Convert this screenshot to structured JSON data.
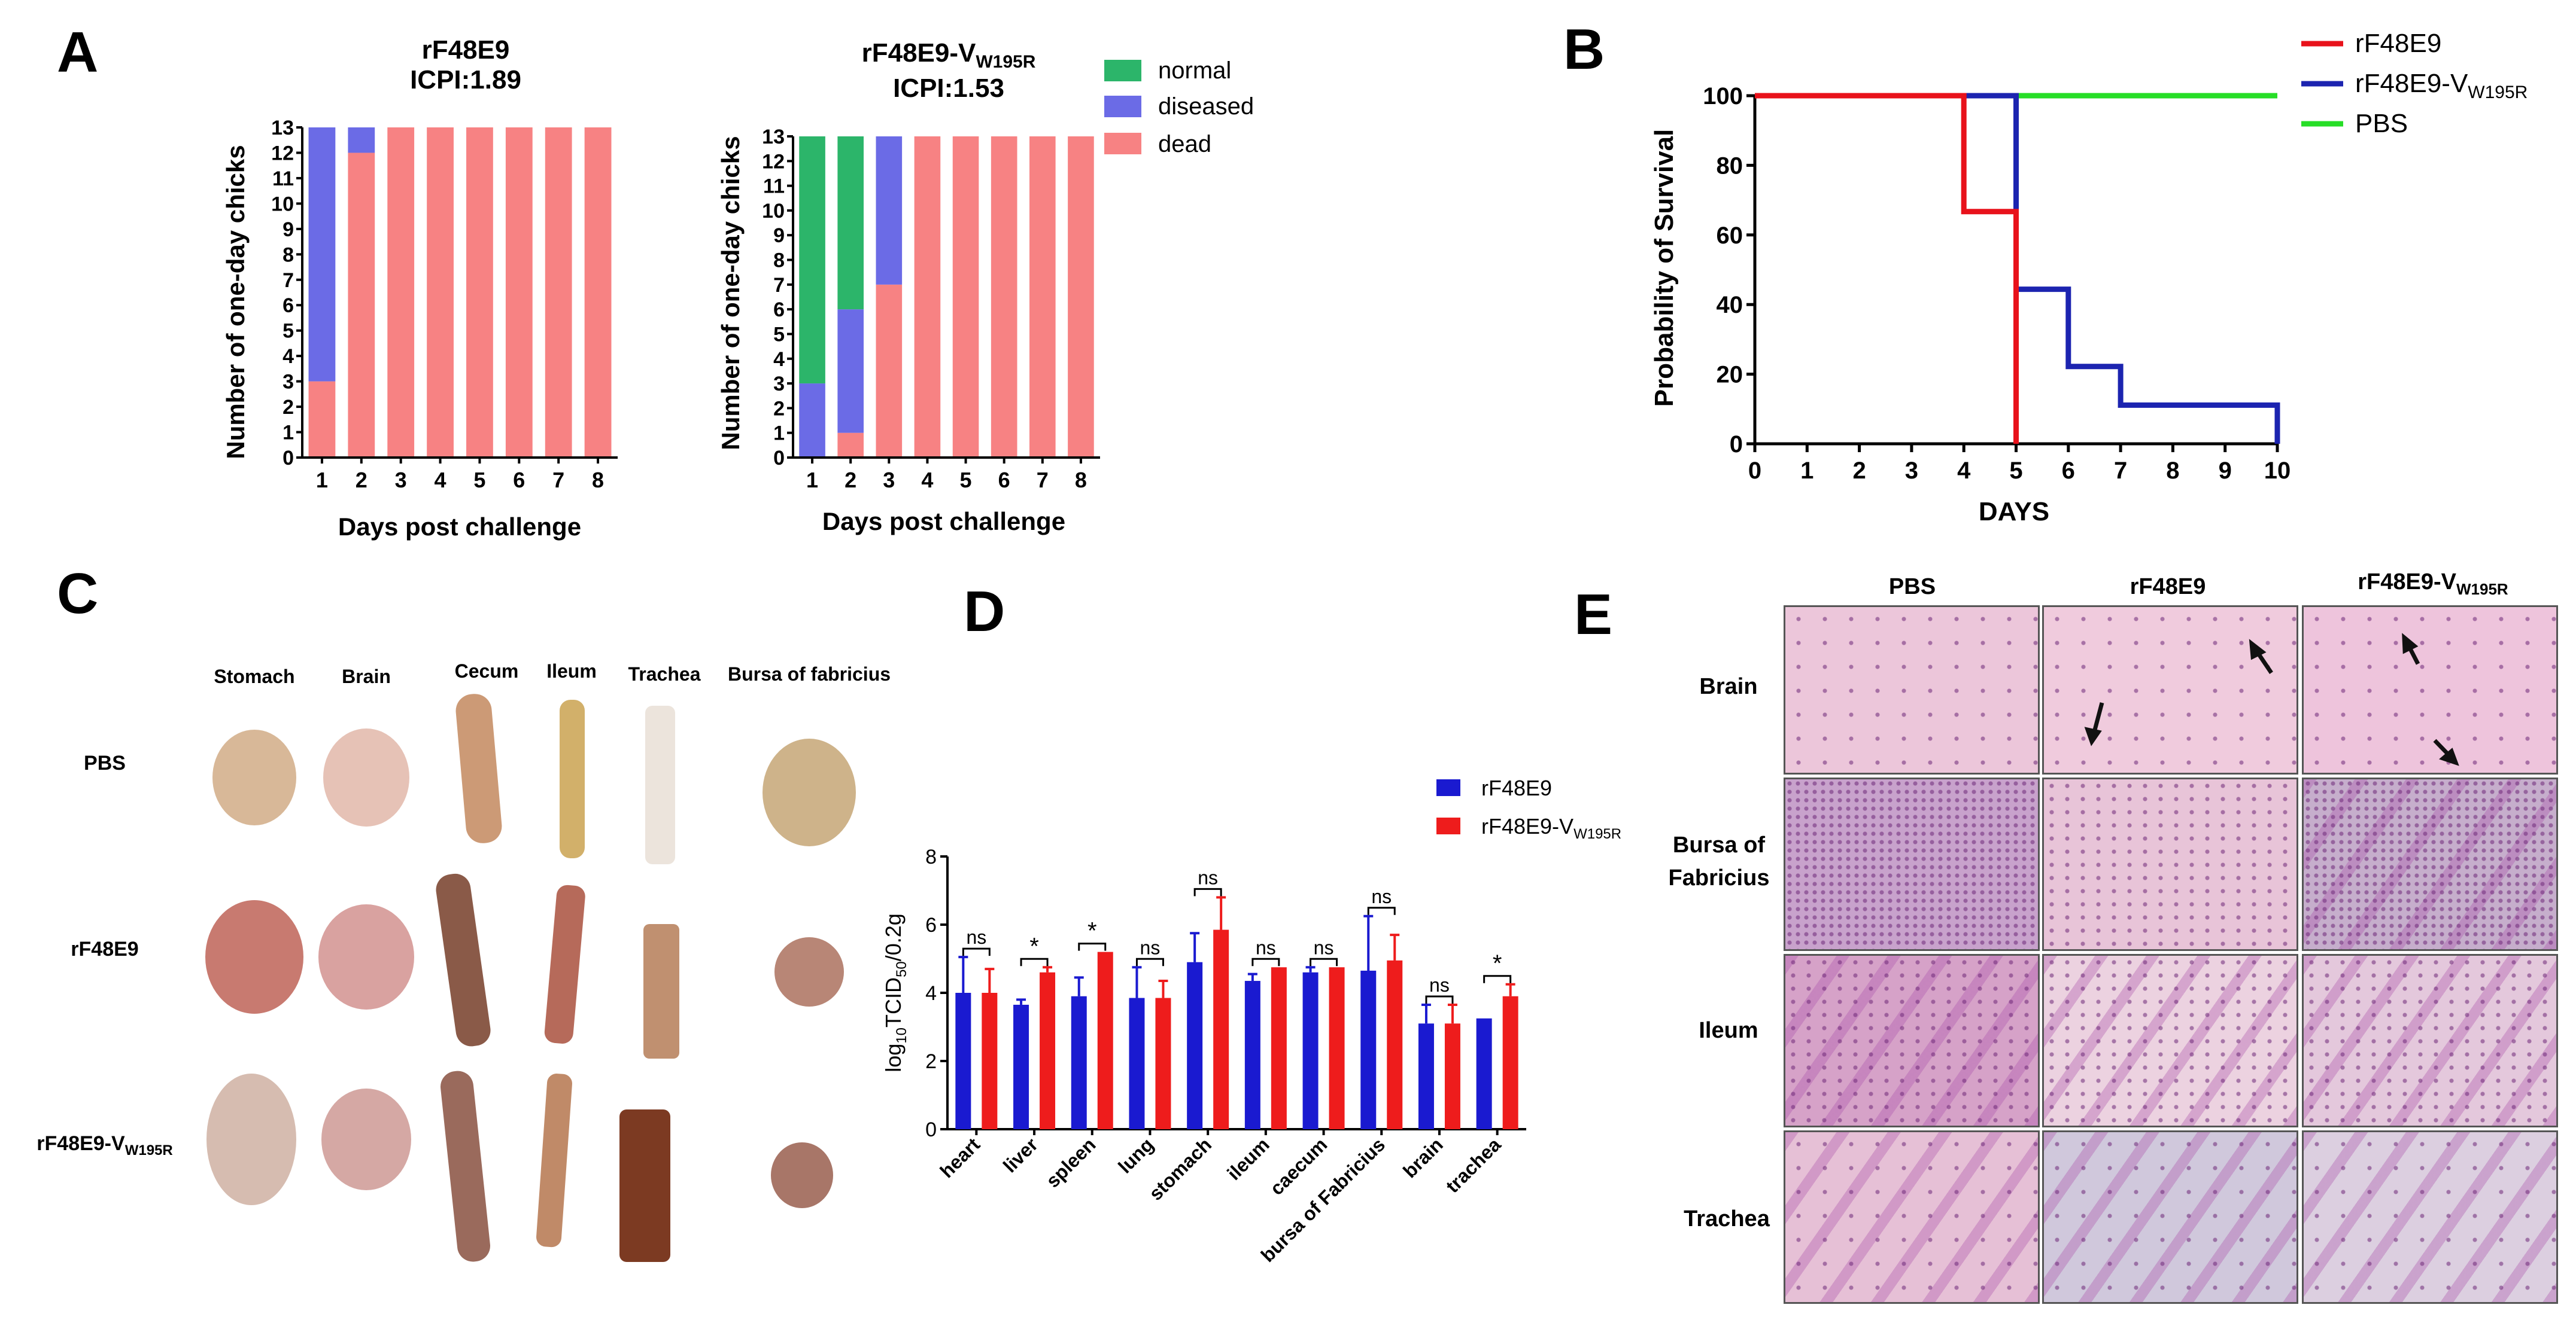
{
  "panels": {
    "A": "A",
    "B": "B",
    "C": "C",
    "D": "D",
    "E": "E"
  },
  "colors": {
    "normal": "#2cb56a",
    "diseased": "#6b6be6",
    "dead": "#f78283",
    "rF48E9": "#e8121b",
    "mutant": "#1c24b0",
    "PBS": "#27de27",
    "barBlue": "#1a1ad0",
    "barRed": "#ee1c1c"
  },
  "chart_data": [
    {
      "id": "A1",
      "type": "bar",
      "title": "rF48E9",
      "subtitle": "ICPI:1.89",
      "xlabel": "Days post challenge",
      "ylabel": "Number of one-day chicks",
      "categories": [
        "1",
        "2",
        "3",
        "4",
        "5",
        "6",
        "7",
        "8"
      ],
      "ylim": [
        0,
        13
      ],
      "yticks": [
        "0",
        "1",
        "2",
        "3",
        "4",
        "5",
        "6",
        "7",
        "8",
        "9",
        "10",
        "11",
        "12",
        "13"
      ],
      "series": [
        {
          "name": "dead",
          "values": [
            3,
            12,
            13,
            13,
            13,
            13,
            13,
            13
          ]
        },
        {
          "name": "diseased",
          "values": [
            10,
            1,
            0,
            0,
            0,
            0,
            0,
            0
          ]
        },
        {
          "name": "normal",
          "values": [
            0,
            0,
            0,
            0,
            0,
            0,
            0,
            0
          ]
        }
      ]
    },
    {
      "id": "A2",
      "type": "bar",
      "title_base": "rF48E9-V",
      "title_sub": "W195R",
      "subtitle": "ICPI:1.53",
      "xlabel": "Days post challenge",
      "ylabel": "Number of one-day chicks",
      "categories": [
        "1",
        "2",
        "3",
        "4",
        "5",
        "6",
        "7",
        "8"
      ],
      "ylim": [
        0,
        13
      ],
      "yticks": [
        "0",
        "1",
        "2",
        "3",
        "4",
        "5",
        "6",
        "7",
        "8",
        "9",
        "10",
        "11",
        "12",
        "13"
      ],
      "legend": [
        "normal",
        "diseased",
        "dead"
      ],
      "series": [
        {
          "name": "dead",
          "values": [
            0,
            1,
            7,
            13,
            13,
            13,
            13,
            13
          ]
        },
        {
          "name": "diseased",
          "values": [
            3,
            5,
            6,
            0,
            0,
            0,
            0,
            0
          ]
        },
        {
          "name": "normal",
          "values": [
            10,
            7,
            0,
            0,
            0,
            0,
            0,
            0
          ]
        }
      ]
    },
    {
      "id": "B",
      "type": "line",
      "xlabel": "DAYS",
      "ylabel": "Probability of Survival",
      "xlim": [
        0,
        10
      ],
      "ylim": [
        0,
        100
      ],
      "xticks": [
        "0",
        "1",
        "2",
        "3",
        "4",
        "5",
        "6",
        "7",
        "8",
        "9",
        "10"
      ],
      "yticks": [
        "0",
        "20",
        "40",
        "60",
        "80",
        "100"
      ],
      "series": [
        {
          "name": "rF48E9",
          "x": [
            0,
            4,
            4,
            5,
            5
          ],
          "y": [
            100,
            100,
            66.7,
            66.7,
            0
          ]
        },
        {
          "name": "rF48E9-VW195R",
          "label_base": "rF48E9-V",
          "label_sub": "W195R",
          "x": [
            0,
            5,
            5,
            6,
            6,
            7,
            7,
            10,
            10
          ],
          "y": [
            100,
            100,
            44.4,
            44.4,
            22.2,
            22.2,
            11.1,
            11.1,
            0
          ]
        },
        {
          "name": "PBS",
          "x": [
            0,
            10
          ],
          "y": [
            100,
            100
          ]
        }
      ]
    },
    {
      "id": "D",
      "type": "bar",
      "ylabel_base": "log",
      "ylabel_sub1": "10",
      "ylabel_mid": "TCID",
      "ylabel_sub2": "50",
      "ylabel_end": "/0.2g",
      "ylim": [
        0,
        8
      ],
      "yticks": [
        "0",
        "2",
        "4",
        "6",
        "8"
      ],
      "categories": [
        "heart",
        "liver",
        "spleen",
        "lung",
        "stomach",
        "ileum",
        "caecum",
        "bursa of Fabricius",
        "brain",
        "trachea"
      ],
      "series": [
        {
          "name": "rF48E9",
          "values": [
            4.0,
            3.65,
            3.9,
            3.85,
            4.9,
            4.35,
            4.6,
            4.65,
            3.1,
            3.25
          ],
          "errors": [
            1.05,
            0.15,
            0.55,
            0.9,
            0.85,
            0.2,
            0.15,
            1.6,
            0.55,
            0.0
          ]
        },
        {
          "name": "rF48E9-VW195R",
          "label_base": "rF48E9-V",
          "label_sub": "W195R",
          "values": [
            4.0,
            4.6,
            5.2,
            3.85,
            5.85,
            4.75,
            4.75,
            4.95,
            3.1,
            3.9
          ],
          "errors": [
            0.7,
            0.15,
            0.0,
            0.5,
            0.95,
            0.0,
            0.0,
            0.75,
            0.55,
            0.35
          ]
        }
      ],
      "significance": [
        "ns",
        "*",
        "*",
        "ns",
        "ns",
        "ns",
        "ns",
        "ns",
        "ns",
        "*"
      ]
    }
  ],
  "panelC": {
    "columns": [
      "Stomach",
      "Brain",
      "Cecum",
      "Ileum",
      "Trachea",
      "Bursa of fabricius"
    ],
    "rows": [
      "PBS",
      "rF48E9"
    ],
    "row3_base": "rF48E9-V",
    "row3_sub": "W195R"
  },
  "panelE": {
    "columns": [
      "PBS",
      "rF48E9"
    ],
    "col3_base": "rF48E9-V",
    "col3_sub": "W195R",
    "rows": [
      "Brain",
      "Bursa of",
      "Fabricius",
      "Ileum",
      "Trachea"
    ]
  }
}
